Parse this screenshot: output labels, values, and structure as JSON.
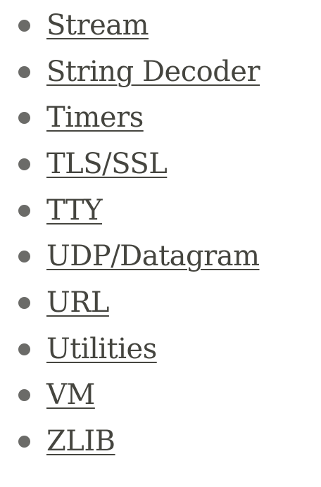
{
  "nav": {
    "items": [
      {
        "label": "Stream"
      },
      {
        "label": "String Decoder"
      },
      {
        "label": "Timers"
      },
      {
        "label": "TLS/SSL"
      },
      {
        "label": "TTY"
      },
      {
        "label": "UDP/Datagram"
      },
      {
        "label": "URL"
      },
      {
        "label": "Utilities"
      },
      {
        "label": "VM"
      },
      {
        "label": "ZLIB"
      }
    ]
  },
  "colors": {
    "link": "#45453f",
    "bullet": "#6b6b68",
    "background": "#ffffff"
  }
}
